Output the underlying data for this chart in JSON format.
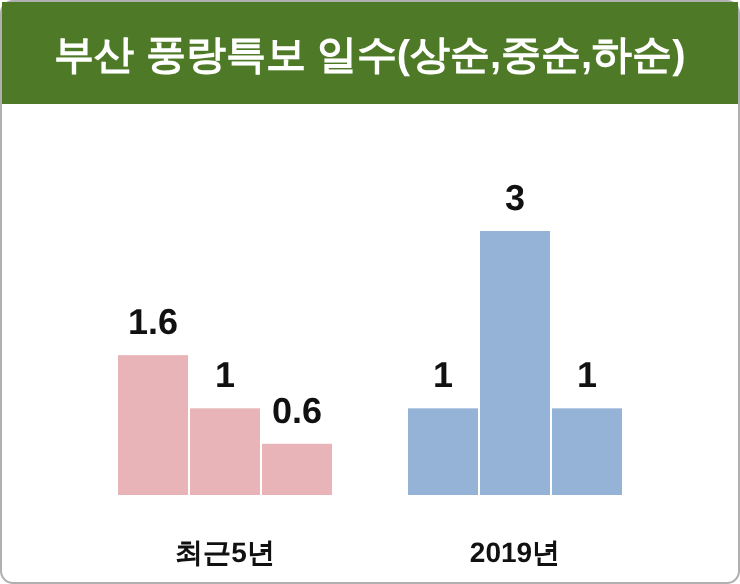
{
  "chart_data": {
    "type": "bar",
    "title": "부산 풍랑특보 일수(상순,중순,하순)",
    "categories": [
      "최근5년",
      "2019년"
    ],
    "series": [
      {
        "colors": [
          "#e8b4b8",
          "#95b3d7"
        ],
        "values": [
          1.6,
          1
        ]
      },
      {
        "colors": [
          "#e8b4b8",
          "#95b3d7"
        ],
        "values": [
          1,
          3
        ]
      },
      {
        "colors": [
          "#e8b4b8",
          "#95b3d7"
        ],
        "values": [
          0.6,
          1
        ]
      }
    ],
    "data_labels": true
  }
}
